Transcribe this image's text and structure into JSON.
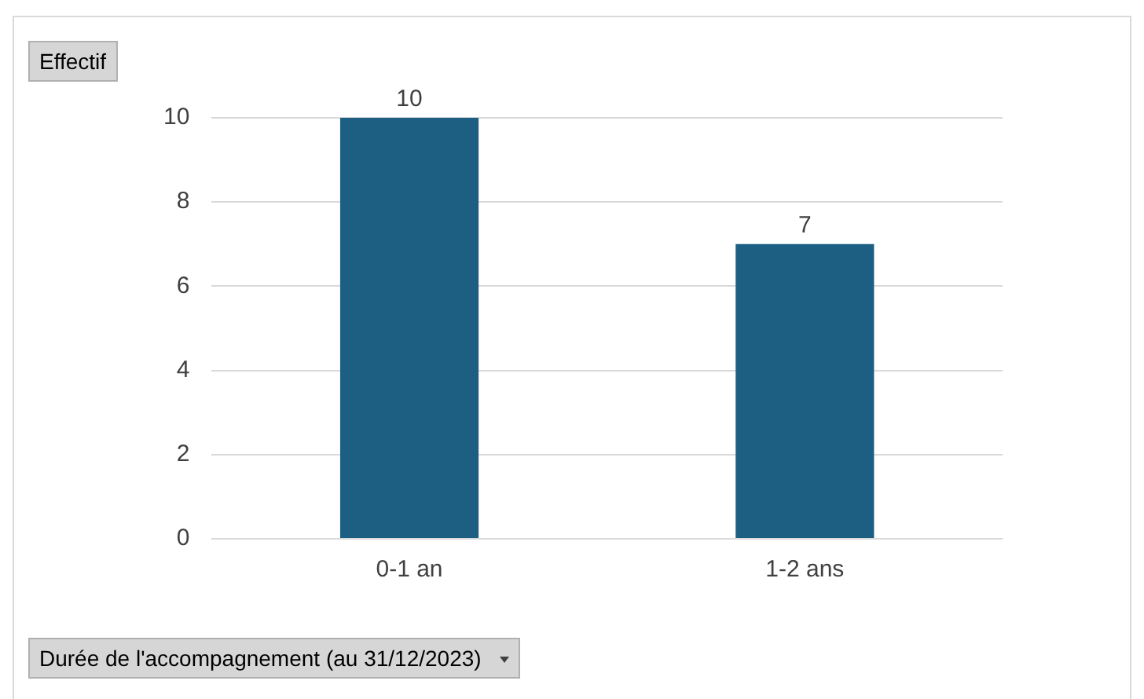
{
  "chart_data": {
    "type": "bar",
    "xlabel": "Durée de l'accompagnement (au 31/12/2023)",
    "ylabel": "Effectif",
    "categories": [
      "0-1 an",
      "1-2 ans"
    ],
    "values": [
      10,
      7
    ],
    "color": "#1d5f82",
    "ylim": [
      0,
      10
    ],
    "yticks": [
      0,
      2,
      4,
      6,
      8,
      10
    ],
    "grid": "y",
    "data_labels": true,
    "legend": false
  }
}
